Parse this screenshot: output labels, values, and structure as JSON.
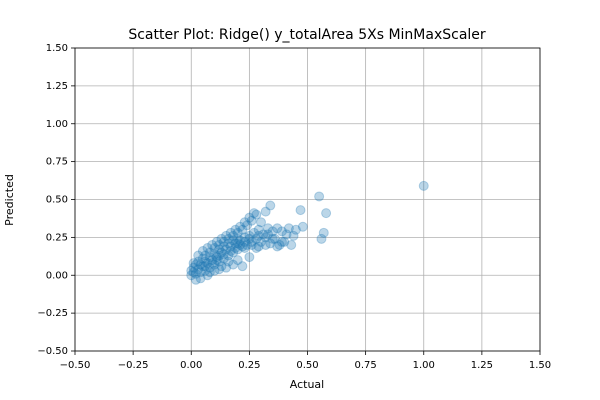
{
  "chart_data": {
    "type": "scatter",
    "title": "Scatter Plot: Ridge() y_totalArea 5Xs MinMaxScaler",
    "x_label": "Actual",
    "y_label": "Predicted",
    "xlim": [
      -0.5,
      1.5
    ],
    "ylim": [
      -0.5,
      1.5
    ],
    "xticks": [
      {
        "value": -0.5,
        "label": "−0.50"
      },
      {
        "value": -0.25,
        "label": "−0.25"
      },
      {
        "value": 0,
        "label": "0.00"
      },
      0.25,
      {
        "value": 0.5,
        "label": "0.50"
      },
      0.75,
      {
        "value": 1,
        "label": "1.00"
      },
      1.25,
      {
        "value": 1.5,
        "label": "1.50"
      }
    ],
    "yticks": [
      {
        "value": -0.5,
        "label": "−0.50"
      },
      {
        "value": -0.25,
        "label": "−0.25"
      },
      {
        "value": 0,
        "label": "0.00"
      },
      0.25,
      {
        "value": 0.5,
        "label": "0.50"
      },
      0.75,
      {
        "value": 1,
        "label": "1.00"
      },
      1.25,
      {
        "value": 1.5,
        "label": "1.50"
      }
    ],
    "grid": true,
    "series": [
      {
        "color": "#1f77b4",
        "x": [
          0.0,
          0.01,
          0.02,
          0.01,
          0.03,
          0.02,
          0.04,
          0.05,
          0.03,
          0.06,
          0.07,
          0.05,
          0.08,
          0.09,
          0.06,
          0.1,
          0.11,
          0.08,
          0.12,
          0.13,
          0.1,
          0.14,
          0.15,
          0.12,
          0.16,
          0.17,
          0.14,
          0.18,
          0.19,
          0.16,
          0.2,
          0.21,
          0.18,
          0.22,
          0.23,
          0.2,
          0.24,
          0.25,
          0.22,
          0.26,
          0.27,
          0.24,
          0.28,
          0.29,
          0.26,
          0.3,
          0.31,
          0.28,
          0.32,
          0.33,
          0.3,
          0.34,
          0.35,
          0.32,
          0.36,
          0.37,
          0.34,
          0.38,
          0.39,
          0.4,
          0.41,
          0.42,
          0.43,
          0.45,
          0.47,
          0.48,
          0.55,
          0.56,
          0.57,
          0.58,
          1.0,
          0.25,
          0.22,
          0.18,
          0.15,
          0.12,
          0.28,
          0.2,
          0.16,
          0.08,
          0.04,
          0.02,
          0.07,
          0.1,
          0.13,
          0.0,
          0.01,
          0.03,
          0.05,
          0.07,
          0.09,
          0.11,
          0.13,
          0.15,
          0.17,
          0.19,
          0.21,
          0.23,
          0.25,
          0.27,
          0.1,
          0.12,
          0.14,
          0.16,
          0.18,
          0.2,
          0.19,
          0.21,
          0.23,
          0.25,
          0.29,
          0.33,
          0.35,
          0.44,
          0.39,
          0.37,
          0.06,
          0.04,
          0.08,
          0.11,
          0.14,
          0.17,
          0.2,
          0.23,
          0.26,
          0.29,
          0.32,
          0.06,
          0.09,
          0.12
        ],
        "y": [
          0.0,
          0.02,
          0.01,
          0.05,
          0.04,
          0.07,
          0.02,
          0.06,
          0.09,
          0.03,
          0.08,
          0.11,
          0.05,
          0.1,
          0.13,
          0.07,
          0.12,
          0.15,
          0.09,
          0.15,
          0.18,
          0.11,
          0.17,
          0.2,
          0.13,
          0.19,
          0.22,
          0.15,
          0.21,
          0.24,
          0.17,
          0.23,
          0.26,
          0.19,
          0.25,
          0.28,
          0.2,
          0.26,
          0.3,
          0.22,
          0.28,
          0.33,
          0.24,
          0.3,
          0.36,
          0.22,
          0.27,
          0.4,
          0.25,
          0.31,
          0.35,
          0.21,
          0.29,
          0.42,
          0.24,
          0.31,
          0.46,
          0.2,
          0.29,
          0.22,
          0.27,
          0.31,
          0.2,
          0.3,
          0.43,
          0.32,
          0.52,
          0.24,
          0.28,
          0.41,
          0.59,
          0.12,
          0.06,
          0.07,
          0.05,
          0.04,
          0.18,
          0.1,
          0.09,
          0.02,
          -0.02,
          -0.03,
          0.0,
          0.03,
          0.06,
          0.03,
          0.08,
          0.13,
          0.16,
          0.18,
          0.2,
          0.22,
          0.24,
          0.26,
          0.28,
          0.3,
          0.32,
          0.35,
          0.38,
          0.41,
          0.14,
          0.17,
          0.19,
          0.21,
          0.23,
          0.24,
          0.18,
          0.2,
          0.22,
          0.24,
          0.26,
          0.27,
          0.24,
          0.26,
          0.22,
          0.19,
          0.09,
          0.07,
          0.12,
          0.1,
          0.14,
          0.16,
          0.21,
          0.18,
          0.2,
          0.19,
          0.2,
          0.06,
          0.08,
          0.13
        ]
      }
    ]
  }
}
